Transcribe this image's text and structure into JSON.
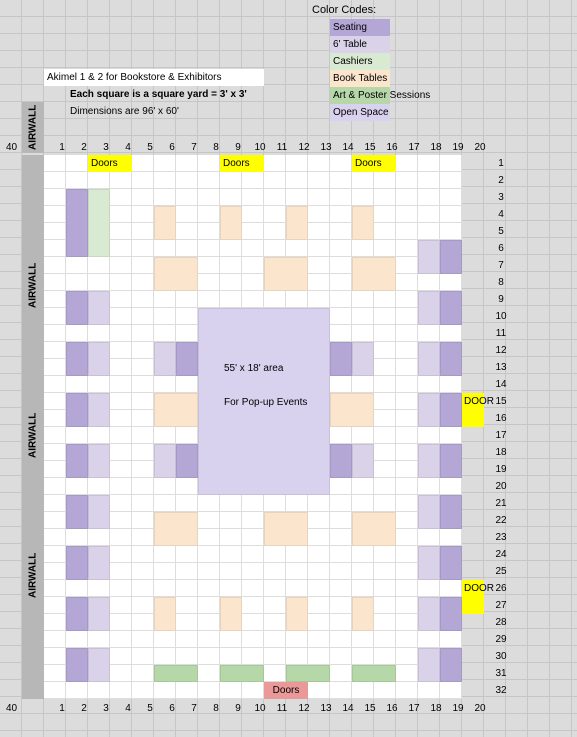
{
  "legend": {
    "heading": "Color Codes:",
    "items": [
      {
        "label": "Seating",
        "color": "#b4a7d6"
      },
      {
        "label": "6' Table",
        "color": "#d9d2e9"
      },
      {
        "label": "Cashiers",
        "color": "#d9ead3"
      },
      {
        "label": "Book Tables",
        "color": "#fce5cd"
      },
      {
        "label": "Art & Poster Sessions",
        "color": "#b6d7a8"
      },
      {
        "label": "Open Space",
        "color": "#d9d2ef"
      }
    ]
  },
  "info": {
    "title": "Akimel 1 & 2 for Bookstore & Exhibitors",
    "line1": "Each square is a square yard = 3' x 3'",
    "line2": "Dimensions are 96' x 60'"
  },
  "airwall_label": "AIRWALL",
  "corner_label": "40",
  "col_numbers": [
    "1",
    "2",
    "3",
    "4",
    "5",
    "6",
    "7",
    "8",
    "9",
    "10",
    "11",
    "12",
    "13",
    "14",
    "15",
    "16",
    "17",
    "18",
    "19",
    "20"
  ],
  "row_numbers": [
    "1",
    "2",
    "3",
    "4",
    "5",
    "6",
    "7",
    "8",
    "9",
    "10",
    "11",
    "12",
    "13",
    "14",
    "15",
    "16",
    "17",
    "18",
    "19",
    "20",
    "21",
    "22",
    "23",
    "24",
    "25",
    "26",
    "27",
    "28",
    "29",
    "30",
    "31",
    "32"
  ],
  "doors": {
    "top": [
      "Doors",
      "Doors",
      "Doors"
    ],
    "bottom": "Doors",
    "right": [
      "DOOR",
      "DOOR"
    ]
  },
  "event_area": {
    "size": "55' x 18' area",
    "purpose": "For Pop-up Events"
  }
}
